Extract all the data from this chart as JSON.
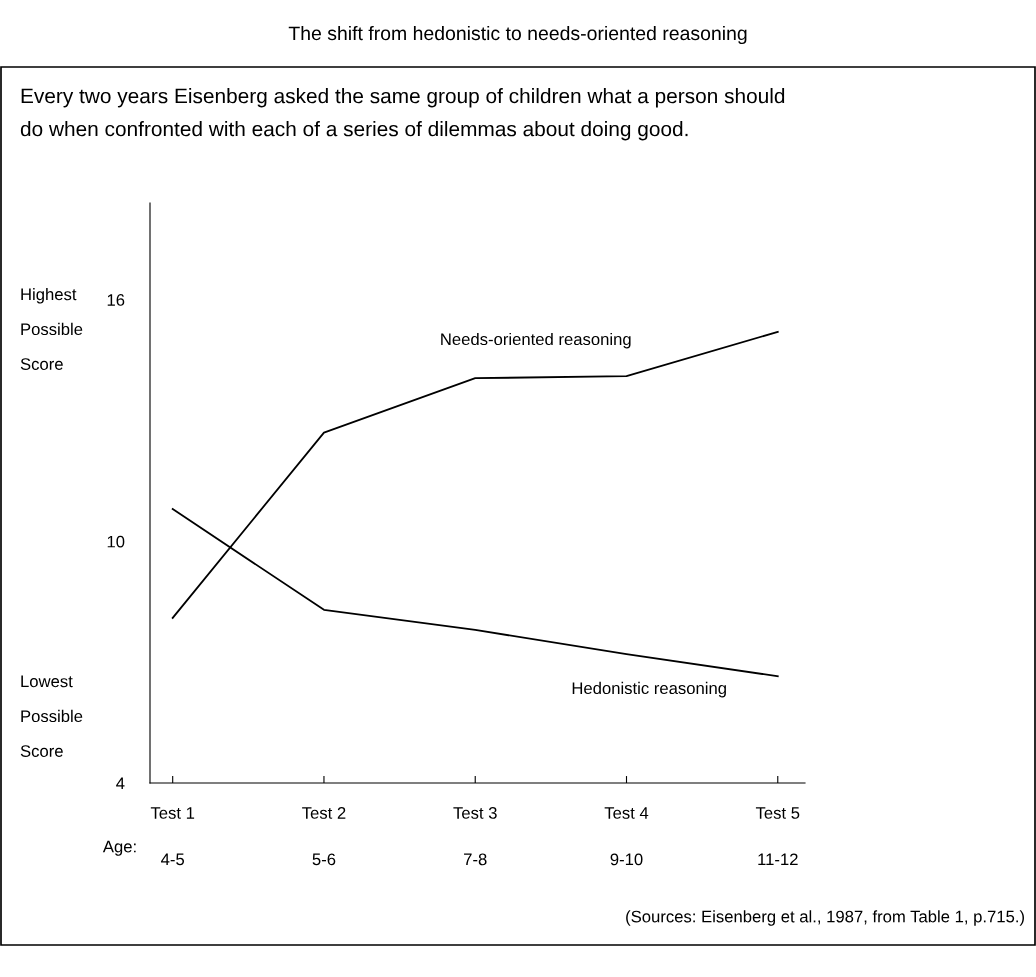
{
  "chart_data": {
    "type": "line",
    "title": "The shift from hedonistic to needs-oriented reasoning",
    "subtitle": "Every two years Eisenberg asked the same group of children what a person should\ndo when confronted with each of a series of dilemmas about doing good.",
    "categories": [
      "Test 1",
      "Test 2",
      "Test 3",
      "Test 4",
      "Test 5"
    ],
    "series": [
      {
        "name": "Needs-oriented reasoning",
        "color": "#000000",
        "values": [
          8.1,
          12.7,
          14.05,
          14.1,
          15.2
        ]
      },
      {
        "name": "Hedonistic reasoning",
        "color": "#000000",
        "values": [
          10.8,
          8.3,
          7.8,
          7.2,
          6.65
        ]
      }
    ],
    "ylim": [
      4,
      18.4
    ],
    "yticks": [
      4,
      10,
      16
    ],
    "annotations": [
      "Highest\nPossible\nScore",
      "Lowest\nPossible\nScore",
      "(Sources: Eisenberg et al., 1987, from Table 1, p.715.)",
      "Age:",
      "4-5",
      "5-6",
      "7-8",
      "9-10",
      "11-12"
    ],
    "grid": false,
    "legend": false,
    "marker": "none",
    "line_style": "solid"
  }
}
